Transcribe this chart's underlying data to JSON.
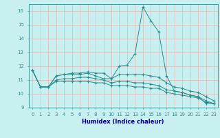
{
  "title": "",
  "xlabel": "Humidex (Indice chaleur)",
  "x": [
    0,
    1,
    2,
    3,
    4,
    5,
    6,
    7,
    8,
    9,
    10,
    11,
    12,
    13,
    14,
    15,
    16,
    17,
    18,
    19,
    20,
    21,
    22,
    23
  ],
  "line1": [
    11.7,
    10.5,
    10.5,
    11.3,
    11.4,
    11.5,
    11.5,
    11.6,
    11.5,
    11.5,
    11.1,
    12.0,
    12.1,
    12.9,
    16.3,
    15.3,
    14.5,
    11.3,
    10.2,
    10.1,
    9.9,
    9.8,
    9.3,
    9.3
  ],
  "line2": [
    11.7,
    10.5,
    10.5,
    11.3,
    11.4,
    11.4,
    11.4,
    11.5,
    11.3,
    11.1,
    11.1,
    11.4,
    11.4,
    11.4,
    11.4,
    11.3,
    11.2,
    10.8,
    10.5,
    10.4,
    10.2,
    10.1,
    9.8,
    9.5
  ],
  "line3": [
    11.7,
    10.5,
    10.5,
    11.0,
    11.1,
    11.1,
    11.2,
    11.2,
    11.1,
    11.0,
    10.8,
    10.9,
    10.9,
    10.8,
    10.8,
    10.7,
    10.6,
    10.3,
    10.2,
    10.1,
    9.9,
    9.8,
    9.5,
    9.3
  ],
  "line4": [
    11.7,
    10.5,
    10.5,
    10.9,
    10.9,
    10.9,
    10.9,
    10.9,
    10.8,
    10.8,
    10.6,
    10.6,
    10.6,
    10.5,
    10.5,
    10.4,
    10.4,
    10.1,
    10.0,
    9.9,
    9.8,
    9.7,
    9.4,
    9.3
  ],
  "line_color": "#2e8b8b",
  "bg_color": "#c8f0f0",
  "grid_color_h": "#e0b8b8",
  "grid_color_v": "#e0b8b8",
  "ylim": [
    9,
    16.5
  ],
  "xlim": [
    -0.5,
    23.5
  ],
  "yticks": [
    9,
    10,
    11,
    12,
    13,
    14,
    15,
    16
  ],
  "xlabel_color": "#000080",
  "xlabel_fontsize": 6.0,
  "tick_fontsize": 5.0
}
